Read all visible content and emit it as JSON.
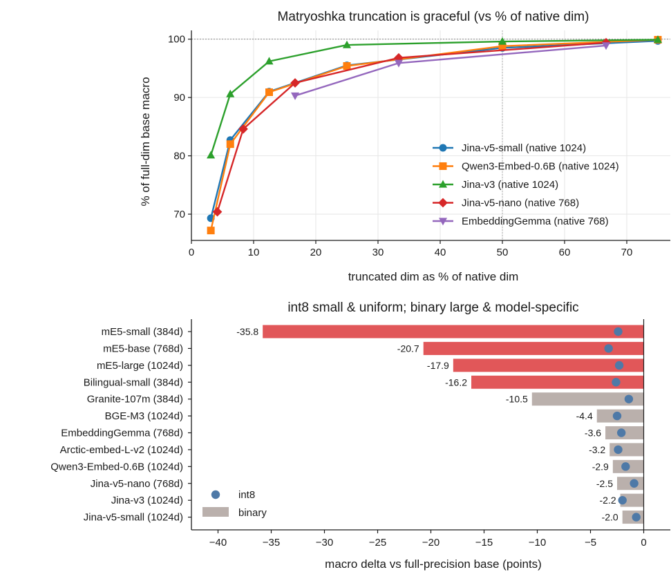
{
  "chart_data": [
    {
      "type": "line",
      "title": "Matryoshka truncation is graceful (vs % of native dim)",
      "xlabel": "truncated dim as % of native dim",
      "ylabel": "% of full-dim base macro",
      "xlim": [
        0,
        77
      ],
      "ylim": [
        65.5,
        101.5
      ],
      "xticks": [
        0,
        10,
        20,
        30,
        40,
        50,
        60,
        70
      ],
      "yticks": [
        70,
        80,
        90,
        100
      ],
      "grid": true,
      "reference_lines": {
        "y": 100,
        "x": 50
      },
      "legend_position": "lower-right",
      "series": [
        {
          "name": "Jina-v5-small (native 1024)",
          "color": "#1f77b4",
          "marker": "circle",
          "x": [
            3.125,
            6.25,
            12.5,
            25,
            50,
            75
          ],
          "y": [
            69.3,
            82.7,
            91.0,
            95.5,
            98.5,
            99.7
          ]
        },
        {
          "name": "Qwen3-Embed-0.6B (native 1024)",
          "color": "#ff7f0e",
          "marker": "square",
          "x": [
            3.125,
            6.25,
            12.5,
            25,
            50,
            75
          ],
          "y": [
            67.2,
            82.0,
            90.9,
            95.4,
            98.8,
            99.9
          ]
        },
        {
          "name": "Jina-v3 (native 1024)",
          "color": "#2ca02c",
          "marker": "triangle-up",
          "x": [
            3.125,
            6.25,
            12.5,
            25,
            50,
            75
          ],
          "y": [
            80.1,
            90.6,
            96.2,
            99.0,
            99.6,
            99.9
          ]
        },
        {
          "name": "Jina-v5-nano (native 768)",
          "color": "#d62728",
          "marker": "diamond",
          "x": [
            4.17,
            8.33,
            16.67,
            33.33,
            66.67
          ],
          "y": [
            70.4,
            84.6,
            92.5,
            96.8,
            99.4
          ]
        },
        {
          "name": "EmbeddingGemma (native 768)",
          "color": "#9467bd",
          "marker": "triangle-down",
          "x": [
            16.67,
            33.33,
            66.67
          ],
          "y": [
            90.3,
            95.9,
            98.9
          ]
        }
      ]
    },
    {
      "type": "bar",
      "orientation": "horizontal",
      "title": "int8 small & uniform; binary large & model-specific",
      "xlabel": "macro delta vs full-precision base (points)",
      "xlim": [
        -42.5,
        2.5
      ],
      "xticks": [
        -40,
        -35,
        -30,
        -25,
        -20,
        -15,
        -10,
        -5,
        0
      ],
      "legend_position": "lower-left",
      "categories": [
        "mE5-small (384d)",
        "mE5-base (768d)",
        "mE5-large (1024d)",
        "Bilingual-small (384d)",
        "Granite-107m (384d)",
        "BGE-M3 (1024d)",
        "EmbeddingGemma (768d)",
        "Arctic-embed-L-v2 (1024d)",
        "Qwen3-Embed-0.6B (1024d)",
        "Jina-v5-nano (768d)",
        "Jina-v3 (1024d)",
        "Jina-v5-small (1024d)"
      ],
      "binary_labels": [
        "-35.8",
        "-20.7",
        "-17.9",
        "-16.2",
        "-10.5",
        "-4.4",
        "-3.6",
        "-3.2",
        "-2.9",
        "-2.5",
        "-2.2",
        "-2.0"
      ],
      "series": [
        {
          "name": "binary",
          "color_highlight": "#e15759",
          "color_default": "#bab0ac",
          "highlight_threshold": -15,
          "values": [
            -35.8,
            -20.7,
            -17.9,
            -16.2,
            -10.5,
            -4.4,
            -3.6,
            -3.2,
            -2.9,
            -2.5,
            -2.2,
            -2.0
          ]
        },
        {
          "name": "int8",
          "color": "#4e79a7",
          "marker": "circle",
          "values": [
            -2.4,
            -3.3,
            -2.3,
            -2.6,
            -1.4,
            -2.5,
            -2.1,
            -2.4,
            -1.7,
            -0.9,
            -2.0,
            -0.7
          ]
        }
      ]
    }
  ]
}
